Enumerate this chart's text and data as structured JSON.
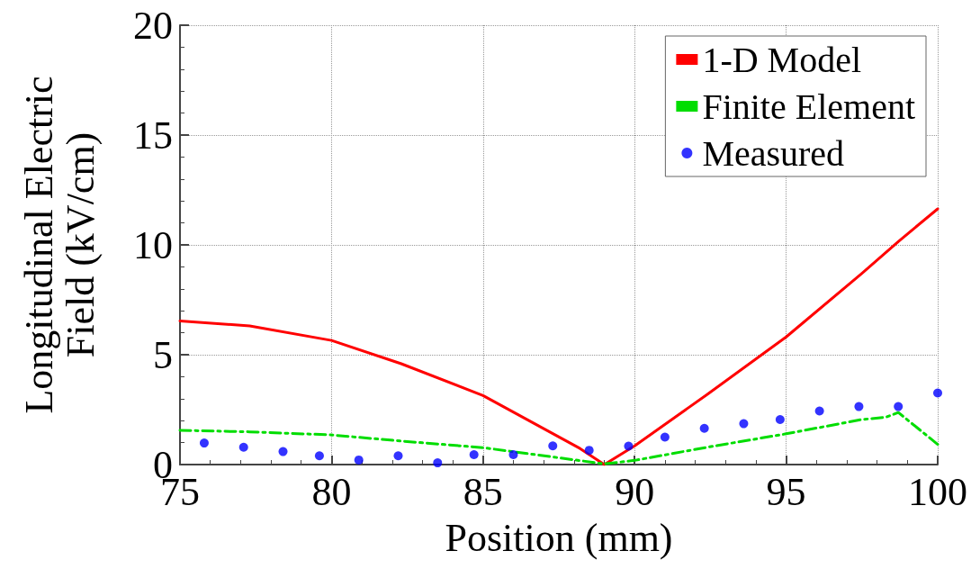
{
  "chart_data": {
    "type": "line",
    "xlabel": "Position (mm)",
    "ylabel": "Longitudinal Electric\nField (kV/cm)",
    "xlim": [
      75,
      100
    ],
    "xticks": [
      75,
      80,
      85,
      90,
      95,
      100
    ],
    "ylim": [
      0,
      20
    ],
    "yticks": [
      0,
      5,
      10,
      15,
      20
    ],
    "grid": true,
    "legend": "top right",
    "series": [
      {
        "name": "1-D Model",
        "type": "line",
        "color": "#ff0000",
        "marker": "none",
        "line_style": "solid",
        "x": [
          75,
          77.3,
          80,
          82.3,
          85,
          88.2,
          89.0,
          90,
          92.4,
          95,
          97.5,
          98.7,
          100
        ],
        "values": [
          6.54,
          6.31,
          5.65,
          4.59,
          3.14,
          0.73,
          0,
          0.85,
          3.2,
          5.81,
          8.7,
          10.15,
          11.64
        ]
      },
      {
        "name": "Finite Element",
        "type": "line",
        "color": "#00dd00",
        "marker": "none",
        "line_style": "dashed",
        "x": [
          75,
          77.3,
          80,
          82.3,
          85,
          88.2,
          89.0,
          90,
          92.4,
          95,
          97.5,
          98.3,
          98.7,
          100
        ],
        "values": [
          1.56,
          1.49,
          1.35,
          1.07,
          0.77,
          0.18,
          0.03,
          0.19,
          0.79,
          1.4,
          2.05,
          2.16,
          2.37,
          0.92
        ]
      },
      {
        "name": "Measured",
        "type": "scatter",
        "color": "#0000ff",
        "marker": "circle",
        "x": [
          75.8,
          77.1,
          78.4,
          79.6,
          80.9,
          82.2,
          83.5,
          84.7,
          86.0,
          87.3,
          88.5,
          89.8,
          91.0,
          92.3,
          93.6,
          94.8,
          96.1,
          97.4,
          98.7,
          100
        ],
        "values": [
          0.98,
          0.79,
          0.59,
          0.4,
          0.21,
          0.4,
          0.08,
          0.45,
          0.45,
          0.85,
          0.65,
          0.84,
          1.25,
          1.65,
          1.86,
          2.05,
          2.44,
          2.64,
          2.64,
          3.26
        ]
      }
    ]
  }
}
